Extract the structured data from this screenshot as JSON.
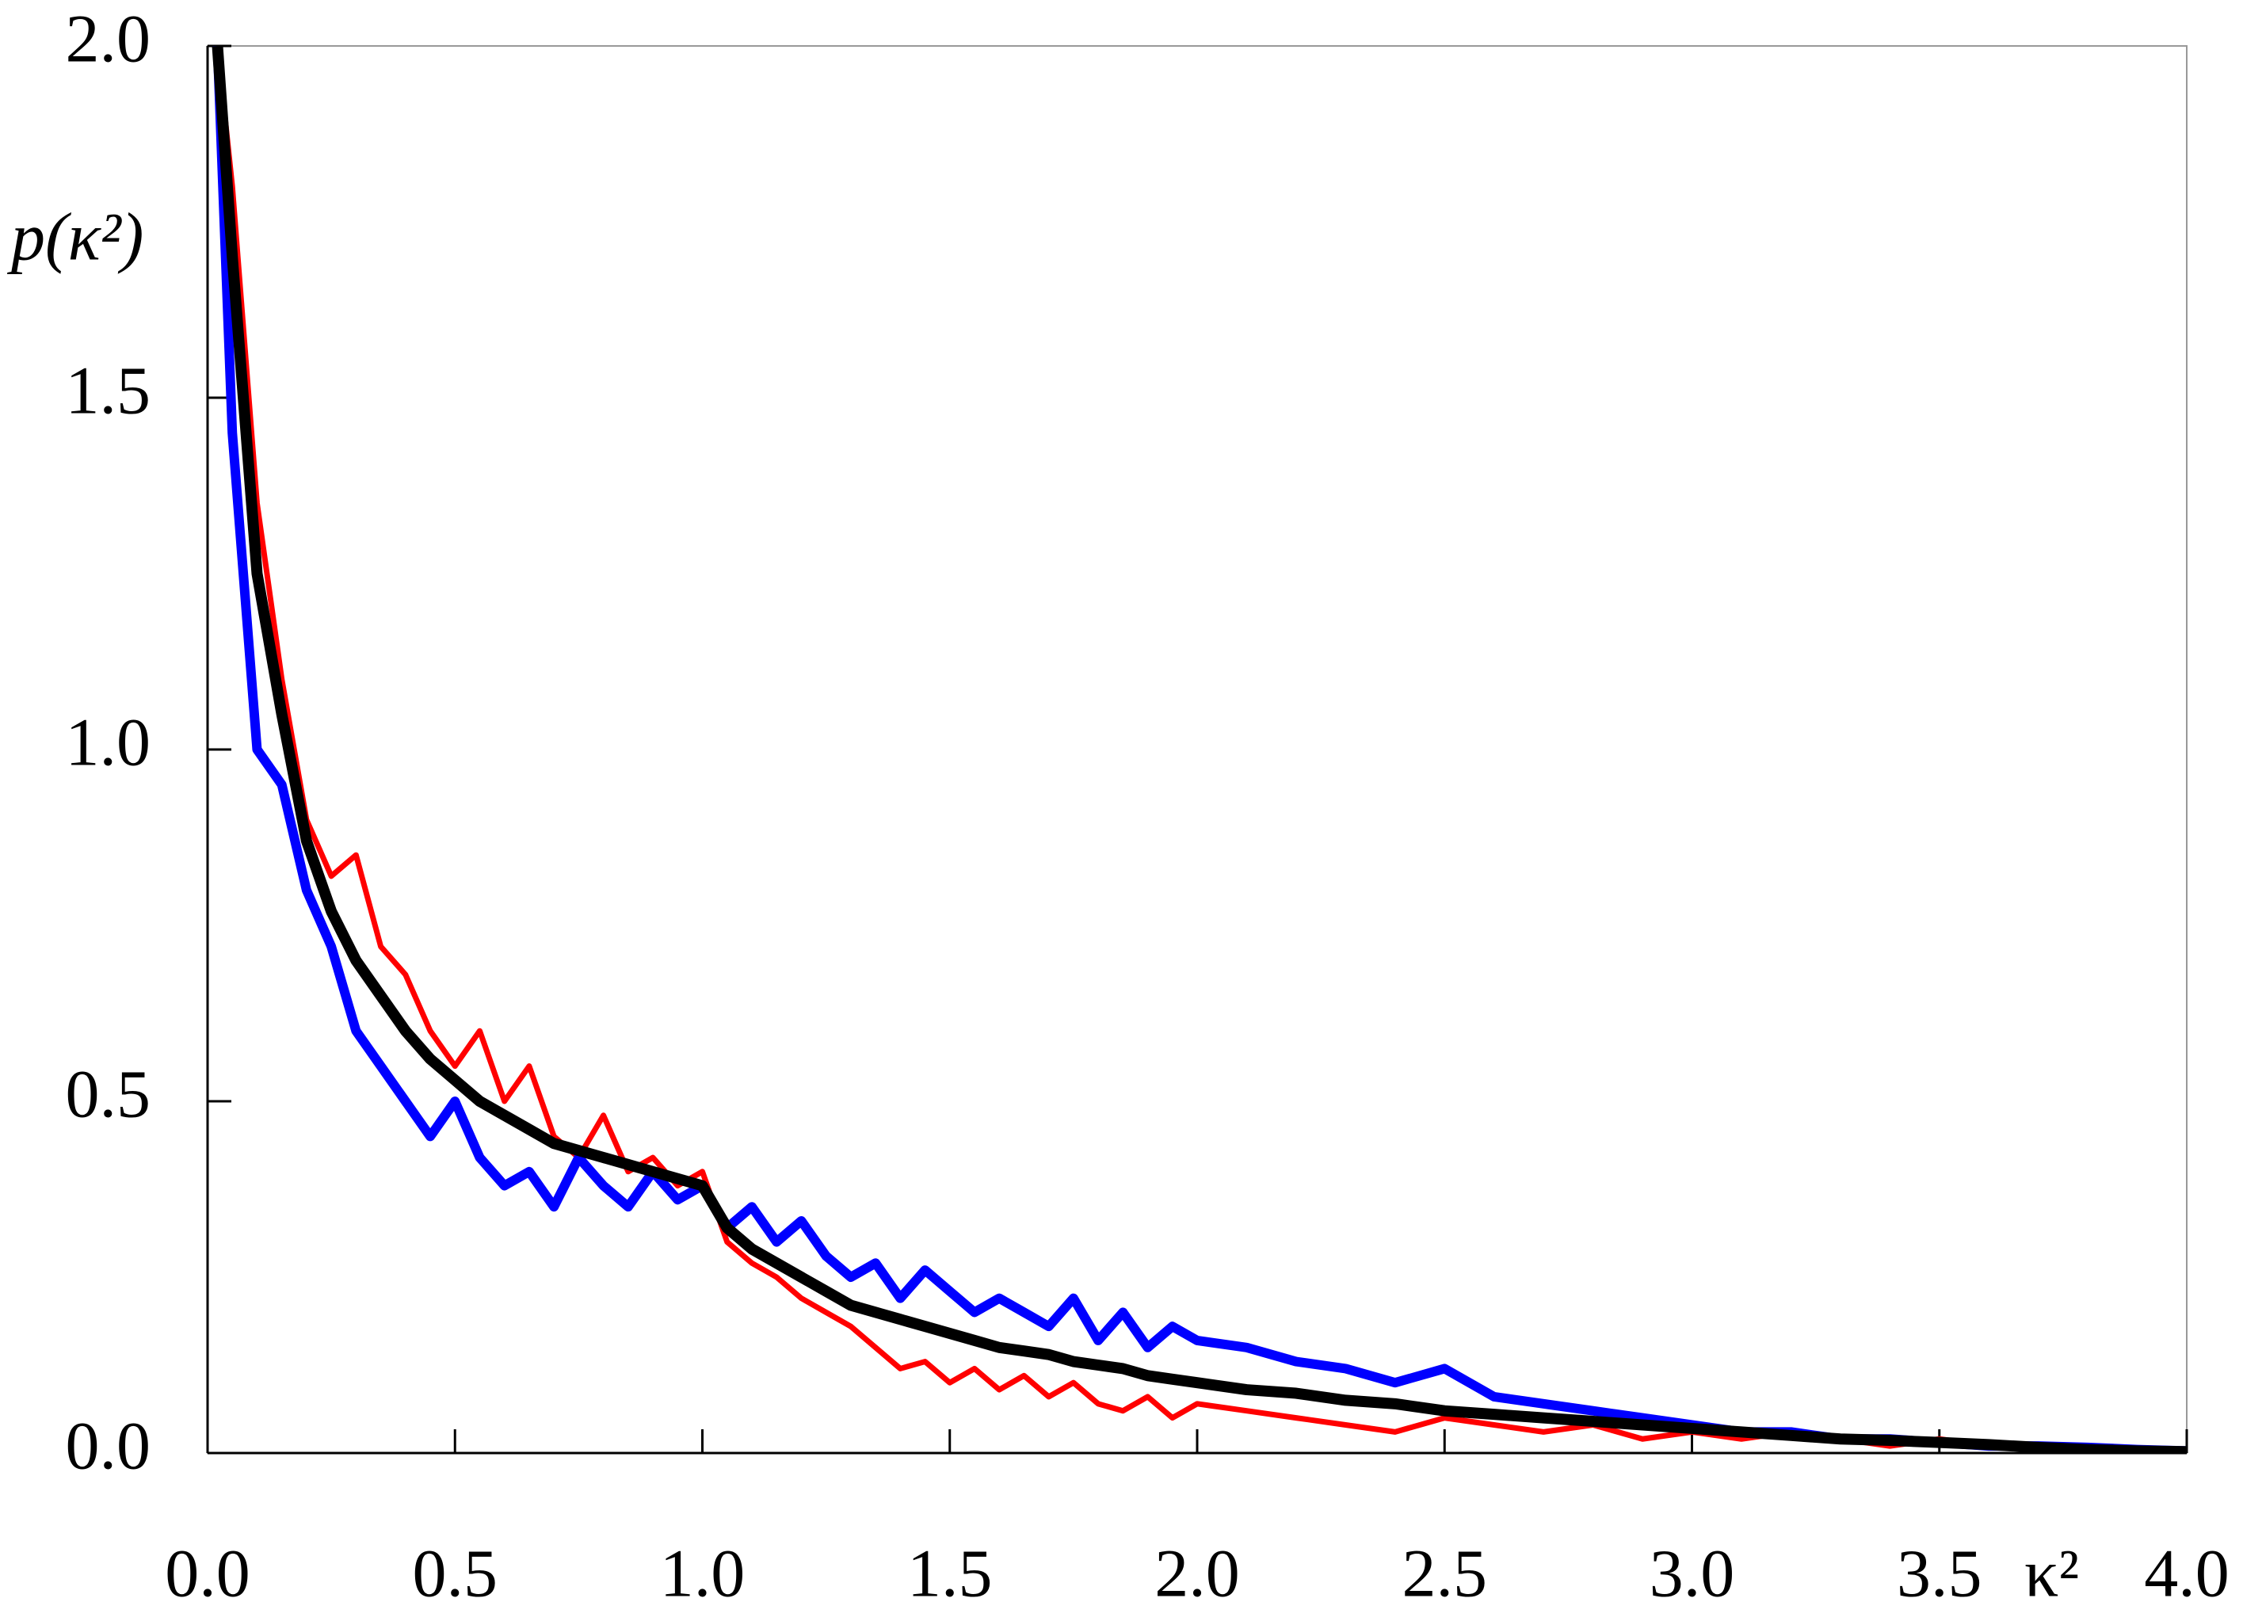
{
  "chart_data": {
    "type": "line",
    "ylabel": "p(κ²)",
    "xlabel": "κ²",
    "x": [
      0.02,
      0.05,
      0.1,
      0.15,
      0.2,
      0.25,
      0.3,
      0.35,
      0.4,
      0.45,
      0.5,
      0.55,
      0.6,
      0.65,
      0.7,
      0.75,
      0.8,
      0.85,
      0.9,
      0.95,
      1.0,
      1.05,
      1.1,
      1.15,
      1.2,
      1.25,
      1.3,
      1.35,
      1.4,
      1.45,
      1.5,
      1.55,
      1.6,
      1.65,
      1.7,
      1.75,
      1.8,
      1.85,
      1.9,
      1.95,
      2.0,
      2.1,
      2.2,
      2.3,
      2.4,
      2.5,
      2.6,
      2.7,
      2.8,
      2.9,
      3.0,
      3.1,
      3.2,
      3.3,
      3.4,
      3.5,
      3.6,
      3.7,
      3.8,
      3.9,
      4.0
    ],
    "series": [
      {
        "color": "#ff0000",
        "width": 7,
        "values": [
          2.0,
          1.8,
          1.35,
          1.1,
          0.9,
          0.82,
          0.85,
          0.72,
          0.68,
          0.6,
          0.55,
          0.6,
          0.5,
          0.55,
          0.45,
          0.42,
          0.48,
          0.4,
          0.42,
          0.38,
          0.4,
          0.3,
          0.27,
          0.25,
          0.22,
          0.2,
          0.18,
          0.15,
          0.12,
          0.13,
          0.1,
          0.12,
          0.09,
          0.11,
          0.08,
          0.1,
          0.07,
          0.06,
          0.08,
          0.05,
          0.07,
          0.06,
          0.05,
          0.04,
          0.03,
          0.05,
          0.04,
          0.03,
          0.04,
          0.02,
          0.03,
          0.02,
          0.03,
          0.02,
          0.01,
          0.02,
          0.01,
          0.01,
          0.005,
          0.003,
          0.002
        ]
      },
      {
        "color": "#0000ff",
        "width": 12,
        "values": [
          2.0,
          1.45,
          1.0,
          0.95,
          0.8,
          0.72,
          0.6,
          0.55,
          0.5,
          0.45,
          0.5,
          0.42,
          0.38,
          0.4,
          0.35,
          0.42,
          0.38,
          0.35,
          0.4,
          0.36,
          0.38,
          0.32,
          0.35,
          0.3,
          0.33,
          0.28,
          0.25,
          0.27,
          0.22,
          0.26,
          0.23,
          0.2,
          0.22,
          0.2,
          0.18,
          0.22,
          0.16,
          0.2,
          0.15,
          0.18,
          0.16,
          0.15,
          0.13,
          0.12,
          0.1,
          0.12,
          0.08,
          0.07,
          0.06,
          0.05,
          0.04,
          0.03,
          0.03,
          0.02,
          0.02,
          0.015,
          0.01,
          0.01,
          0.008,
          0.005,
          0.003
        ]
      },
      {
        "color": "#000000",
        "width": 14,
        "values": [
          2.0,
          1.7,
          1.25,
          1.05,
          0.87,
          0.77,
          0.7,
          0.65,
          0.6,
          0.56,
          0.53,
          0.5,
          0.48,
          0.46,
          0.44,
          0.43,
          0.42,
          0.41,
          0.4,
          0.39,
          0.38,
          0.32,
          0.29,
          0.27,
          0.25,
          0.23,
          0.21,
          0.2,
          0.19,
          0.18,
          0.17,
          0.16,
          0.15,
          0.145,
          0.14,
          0.13,
          0.125,
          0.12,
          0.11,
          0.105,
          0.1,
          0.09,
          0.085,
          0.075,
          0.07,
          0.06,
          0.055,
          0.05,
          0.045,
          0.04,
          0.035,
          0.03,
          0.025,
          0.02,
          0.018,
          0.015,
          0.012,
          0.008,
          0.005,
          0.003,
          0.002
        ]
      }
    ],
    "xlim": [
      0,
      4
    ],
    "ylim": [
      0,
      2
    ],
    "xticks": [
      {
        "value": 0,
        "label": "0.0"
      },
      0.5,
      {
        "value": 1,
        "label": "1.0"
      },
      1.5,
      {
        "value": 2,
        "label": "2.0"
      },
      2.5,
      {
        "value": 3,
        "label": "3.0"
      },
      3.5,
      {
        "value": 4,
        "label": "4.0"
      }
    ],
    "yticks": [
      {
        "value": 0,
        "label": "0.0"
      },
      0.5,
      {
        "value": 1,
        "label": "1.0"
      },
      1.5,
      {
        "value": 2,
        "label": "2.0"
      }
    ]
  }
}
